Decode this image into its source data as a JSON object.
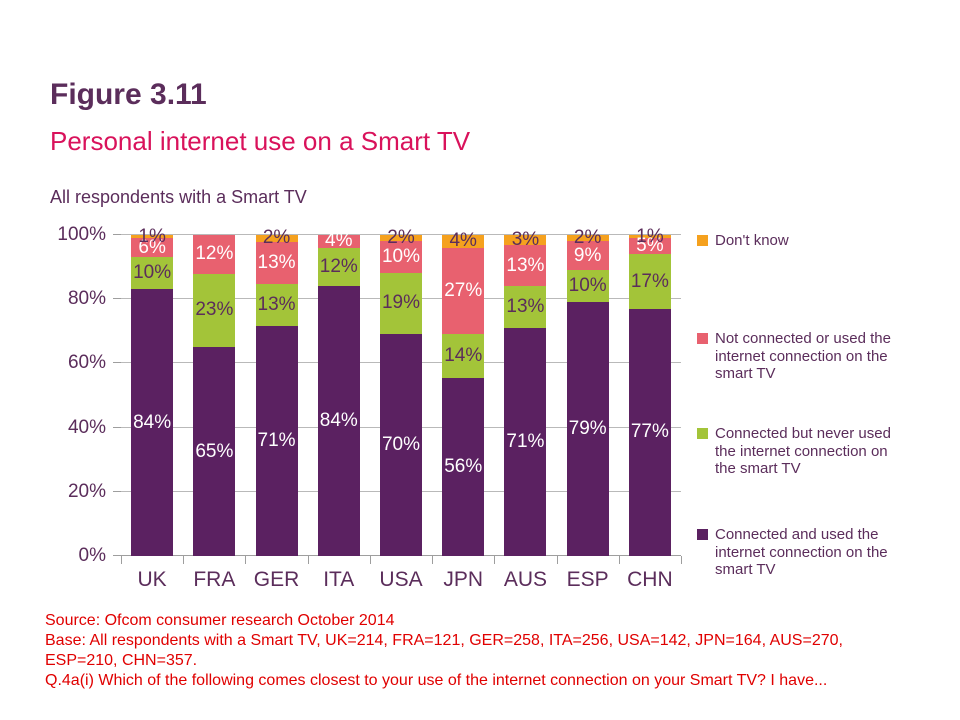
{
  "page": {
    "figure_label": "Figure 3.11",
    "title": "Personal internet use on a Smart TV",
    "chart_note": "All respondents with a Smart TV"
  },
  "colors": {
    "heading_purple": "#5B2D5B",
    "title_crimson": "#D9125B",
    "footer_red": "#E00000",
    "gridline_gray": "#B9B9B9",
    "series_connected_used": "#5B2161",
    "series_connected_never_used": "#A3C439",
    "series_not_connected": "#E8616F",
    "series_dont_know": "#F5A11E"
  },
  "chart_data": {
    "type": "bar",
    "subtype": "stacked-percent",
    "title": "Personal internet use on a Smart TV",
    "subtitle": "All respondents with a Smart TV",
    "categories": [
      "UK",
      "FRA",
      "GER",
      "ITA",
      "USA",
      "JPN",
      "AUS",
      "ESP",
      "CHN"
    ],
    "series": [
      {
        "name": "Connected and used the internet connection on the smart TV",
        "color": "#5B2161",
        "label_color": "#FFFFFF",
        "values": [
          84,
          65,
          71,
          84,
          70,
          56,
          71,
          79,
          77
        ]
      },
      {
        "name": "Connected but never used the internet connection on the smart TV",
        "color": "#A3C439",
        "label_color": "#5B2D5B",
        "values": [
          10,
          23,
          13,
          12,
          19,
          14,
          13,
          10,
          17
        ]
      },
      {
        "name": "Not connected or used the internet connection on the smart TV",
        "color": "#E8616F",
        "label_color": "#FFFFFF",
        "values": [
          6,
          12,
          13,
          4,
          10,
          27,
          13,
          9,
          5
        ]
      },
      {
        "name": "Don't know",
        "color": "#F5A11E",
        "label_color": "#5B2D5B",
        "values": [
          1,
          0,
          2,
          0,
          2,
          4,
          3,
          2,
          1
        ]
      }
    ],
    "y_ticks": [
      "0%",
      "20%",
      "40%",
      "60%",
      "80%",
      "100%"
    ],
    "ylim": [
      0,
      100
    ],
    "grid": true,
    "legend_position": "right",
    "data_label_suffix": "%"
  },
  "legend": {
    "items": [
      {
        "label": "Don't know",
        "color": "#F5A11E"
      },
      {
        "label": "Not connected or used the internet connection on the smart TV",
        "color": "#E8616F"
      },
      {
        "label": "Connected but never used the internet connection on the smart TV",
        "color": "#A3C439"
      },
      {
        "label": "Connected and used the internet connection on the smart TV",
        "color": "#5B2161"
      }
    ]
  },
  "footer": {
    "lines": [
      "Source: Ofcom consumer research October 2014",
      "Base: All respondents with a Smart TV, UK=214, FRA=121, GER=258, ITA=256, USA=142, JPN=164, AUS=270,",
      "ESP=210, CHN=357.",
      "Q.4a(i) Which of the following comes closest to your use of the internet connection on your Smart TV? I have..."
    ]
  }
}
